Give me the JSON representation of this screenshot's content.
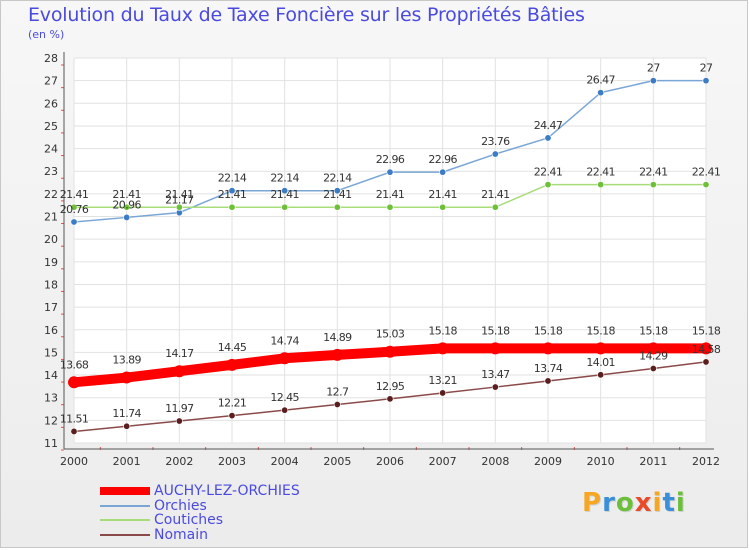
{
  "chart_data": {
    "type": "line",
    "title": "Evolution du Taux de Taxe Foncière sur les Propriétés Bâties",
    "subtitle": "(en %)",
    "x": [
      "2000",
      "2001",
      "2002",
      "2003",
      "2004",
      "2005",
      "2006",
      "2007",
      "2008",
      "2009",
      "2010",
      "2011",
      "2012"
    ],
    "ylim": [
      11,
      28
    ],
    "yticks": [
      "11",
      "12",
      "13",
      "14",
      "15",
      "16",
      "17",
      "18",
      "19",
      "20",
      "21",
      "22",
      "23",
      "24",
      "25",
      "26",
      "27",
      "28"
    ],
    "grid": true,
    "legend": "bottom-left",
    "series": [
      {
        "name": "Orchies",
        "color": "#7aa6d6",
        "marker": "#3b7cc4",
        "values": [
          20.76,
          20.96,
          21.17,
          22.14,
          22.14,
          22.14,
          22.96,
          22.96,
          23.76,
          24.47,
          26.47,
          27,
          27
        ],
        "labels": [
          "20.76",
          "20.96",
          "21.17",
          "22.14",
          "22.14",
          "22.14",
          "22.96",
          "22.96",
          "23.76",
          "24.47",
          "26.47",
          "27",
          "27"
        ]
      },
      {
        "name": "Coutiches",
        "color": "#a8dc7a",
        "marker": "#6ec03a",
        "values": [
          21.41,
          21.41,
          21.41,
          21.41,
          21.41,
          21.41,
          21.41,
          21.41,
          21.41,
          22.41,
          22.41,
          22.41,
          22.41
        ],
        "labels": [
          "21.41",
          "21.41",
          "21.41",
          "21.41",
          "21.41",
          "21.41",
          "21.41",
          "21.41",
          "21.41",
          "22.41",
          "22.41",
          "22.41",
          "22.41"
        ]
      },
      {
        "name": "Nomain",
        "color": "#8b4a4a",
        "marker": "#5a1e1e",
        "values": [
          11.51,
          11.74,
          11.97,
          12.21,
          12.45,
          12.7,
          12.95,
          13.21,
          13.47,
          13.74,
          14.01,
          14.29,
          14.58
        ],
        "labels": [
          "11.51",
          "11.74",
          "11.97",
          "12.21",
          "12.45",
          "12.7",
          "12.95",
          "13.21",
          "13.47",
          "13.74",
          "14.01",
          "14.29",
          "14.58"
        ]
      },
      {
        "name": "AUCHY-LEZ-ORCHIES",
        "color": "#ff0000",
        "marker": "#ff0000",
        "values": [
          13.68,
          13.89,
          14.17,
          14.45,
          14.74,
          14.89,
          15.03,
          15.18,
          15.18,
          15.18,
          15.18,
          15.18,
          15.18
        ],
        "labels": [
          "13.68",
          "13.89",
          "14.17",
          "14.45",
          "14.74",
          "14.89",
          "15.03",
          "15.18",
          "15.18",
          "15.18",
          "15.18",
          "15.18",
          "15.18"
        ]
      }
    ],
    "legend_entries": [
      "AUCHY-LEZ-ORCHIES",
      "Orchies",
      "Coutiches",
      "Nomain"
    ]
  },
  "logo": {
    "letters": [
      "P",
      "r",
      "o",
      "x",
      "i",
      "t",
      "i"
    ],
    "colors": [
      "#f5a623",
      "#3a8fd8",
      "#6cbf3a",
      "#e84a2a",
      "#f5a623",
      "#3a8fd8",
      "#6cbf3a"
    ]
  }
}
